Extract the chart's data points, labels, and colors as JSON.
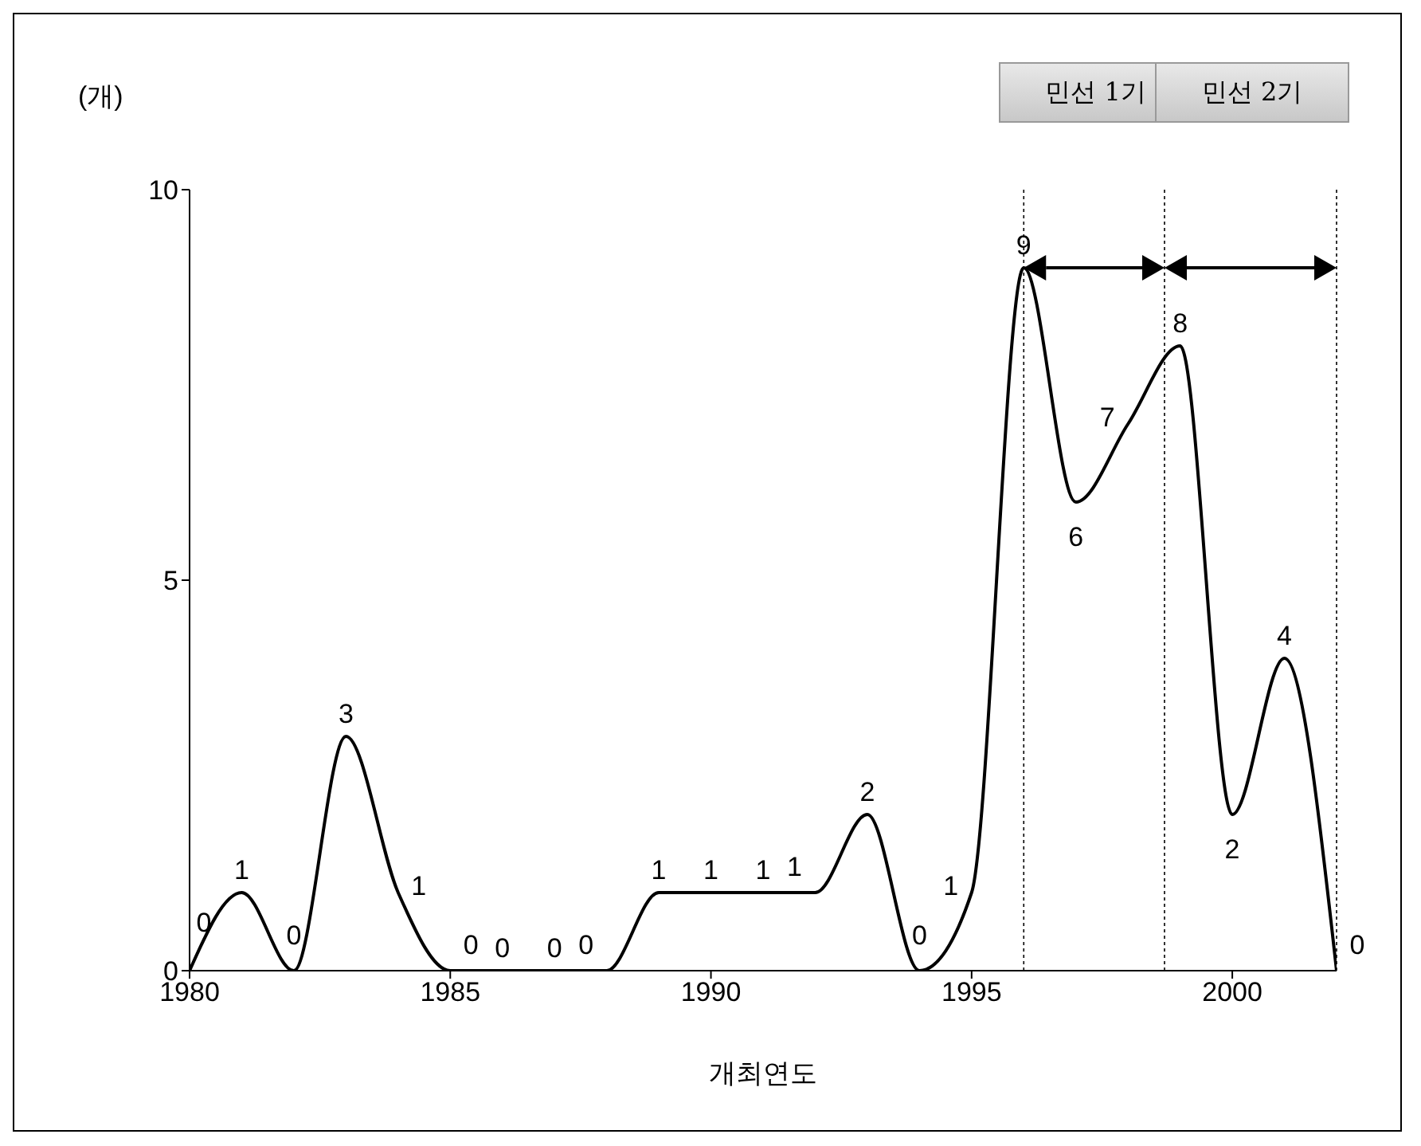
{
  "chart_data": {
    "type": "line",
    "xlabel": "개최연도",
    "ylabel": "(개)",
    "x": [
      1980,
      1981,
      1982,
      1983,
      1984,
      1985,
      1986,
      1987,
      1988,
      1989,
      1990,
      1991,
      1992,
      1993,
      1994,
      1995,
      1996,
      1997,
      1998,
      1999,
      2000,
      2001,
      2002
    ],
    "series": [
      {
        "color": "#000000",
        "values": [
          0,
          1,
          0,
          3,
          1,
          0,
          0,
          0,
          0,
          1,
          1,
          1,
          1,
          2,
          0,
          1,
          9,
          6,
          7,
          8,
          2,
          4,
          0
        ]
      }
    ],
    "xlim": [
      1980,
      2002
    ],
    "xticks": [
      1980,
      1985,
      1990,
      1995,
      2000
    ],
    "ylim": [
      0,
      10
    ],
    "yticks": [
      0,
      5,
      10
    ],
    "data_labels": true,
    "grid": false,
    "legend": false,
    "marker": "none",
    "ref_lines": [
      {
        "axis": "x",
        "value": 1996,
        "color": "#000000",
        "line_style": "dotted"
      },
      {
        "axis": "x",
        "value": 1998.7,
        "color": "#000000",
        "line_style": "dotted"
      },
      {
        "axis": "x",
        "value": 2002,
        "color": "#000000",
        "line_style": "dotted"
      }
    ],
    "annotations": [
      "민선 1기",
      "민선 2기"
    ]
  }
}
